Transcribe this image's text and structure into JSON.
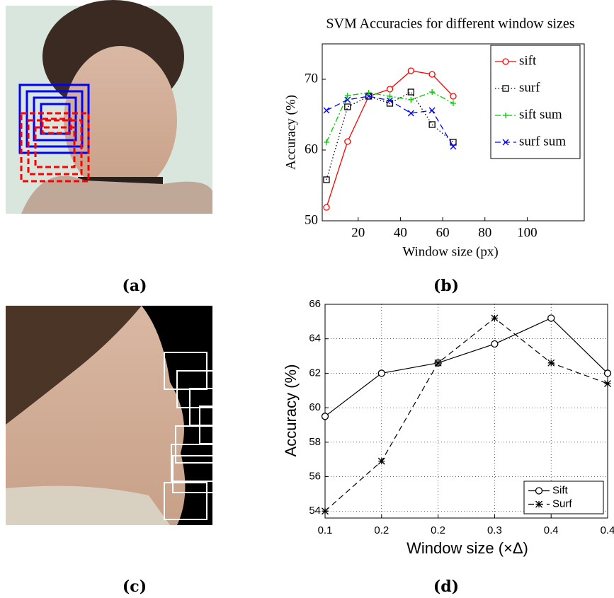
{
  "panel_labels": [
    "(a)",
    "(b)",
    "(c)",
    "(d)"
  ],
  "chart_data": [
    {
      "type": "line",
      "title": "SVM Accuracies for different window sizes",
      "x_label": "Window size (px)",
      "y_label": "Accuracy (%)",
      "x": [
        5,
        15,
        25,
        35,
        45,
        55,
        65
      ],
      "xlim": [
        3,
        127
      ],
      "ylim": [
        50,
        75
      ],
      "xticks": [
        20,
        40,
        60,
        80,
        100
      ],
      "yticks": [
        50,
        60,
        70
      ],
      "grid": false,
      "legend": "upper right",
      "series": [
        {
          "name": "sift",
          "color": "#ff0000",
          "marker": "circle",
          "linestyle": "solid",
          "values": [
            51.9,
            61.2,
            67.6,
            68.6,
            71.2,
            70.7,
            67.6
          ]
        },
        {
          "name": "surf",
          "color": "#000000",
          "marker": "square",
          "linestyle": "dotted",
          "values": [
            55.8,
            66.1,
            67.6,
            66.6,
            68.2,
            63.6,
            61.1
          ]
        },
        {
          "name": "sift sum",
          "color": "#00cc00",
          "marker": "plus",
          "linestyle": "dashdot",
          "values": [
            61.1,
            67.7,
            68.1,
            67.6,
            67.1,
            68.2,
            66.6
          ]
        },
        {
          "name": "surf sum",
          "color": "#0000ff",
          "marker": "x",
          "linestyle": "dashed",
          "values": [
            65.6,
            67.1,
            67.6,
            67.0,
            65.2,
            65.6,
            60.5
          ]
        }
      ]
    },
    {
      "type": "line",
      "x_label": "Window size (×Δ)",
      "y_label": "Accuracy (%)",
      "x": [
        0.1,
        0.165,
        0.23,
        0.295,
        0.36,
        0.425
      ],
      "xlim": [
        0.1,
        0.425
      ],
      "ylim": [
        53.6,
        66
      ],
      "xticks": [
        0.1,
        {
          "value": 0.165,
          "label": "0.2"
        },
        {
          "value": 0.23,
          "label": "0.2"
        },
        {
          "value": 0.295,
          "label": "0.3"
        },
        {
          "value": 0.36,
          "label": "0.4"
        },
        {
          "value": 0.425,
          "label": "0.4"
        }
      ],
      "yticks": [
        54,
        56,
        58,
        60,
        62,
        64,
        66
      ],
      "grid": true,
      "legend": "lower right",
      "series": [
        {
          "name": "Sift",
          "color": "#000000",
          "marker": "circle",
          "linestyle": "solid",
          "values": [
            59.5,
            62.0,
            62.6,
            63.7,
            65.2,
            62.0
          ]
        },
        {
          "name": "Surf",
          "color": "#000000",
          "marker": "asterisk",
          "linestyle": "dashed",
          "values": [
            54.0,
            56.9,
            62.6,
            65.2,
            62.6,
            61.4
          ]
        }
      ]
    }
  ]
}
